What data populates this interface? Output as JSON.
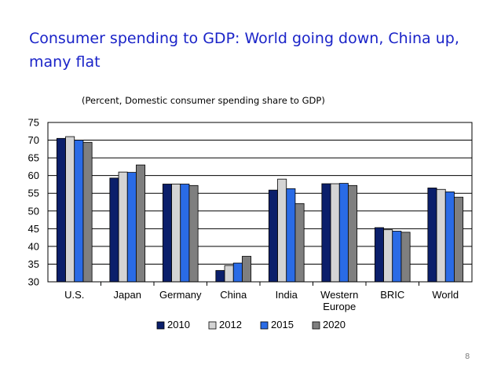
{
  "slide": {
    "title": "Consumer spending to GDP: World going down, China up, many flat",
    "subtitle": "(Percent, Domestic consumer spending share to GDP)",
    "page_number": "8"
  },
  "colors": {
    "title": "#1a23c8",
    "series": [
      "#0b1f6b",
      "#d4d4d4",
      "#2a6be6",
      "#7f7f7f"
    ],
    "plot_background": "#ffffff",
    "gridline": "#000000"
  },
  "chart_data": {
    "type": "bar",
    "title": "Consumer spending to GDP: World going down, China up, many flat",
    "subtitle": "(Percent, Domestic consumer spending share to GDP)",
    "categories": [
      "U.S.",
      "Japan",
      "Germany",
      "China",
      "India",
      "Western Europe",
      "BRIC",
      "World"
    ],
    "category_lines": [
      [
        "U.S."
      ],
      [
        "Japan"
      ],
      [
        "Germany"
      ],
      [
        "China"
      ],
      [
        "India"
      ],
      [
        "Western",
        "Europe"
      ],
      [
        "BRIC"
      ],
      [
        "World"
      ]
    ],
    "series": [
      {
        "name": "2010",
        "values": [
          70.5,
          59.3,
          57.6,
          33.2,
          55.9,
          57.7,
          45.3,
          56.5
        ]
      },
      {
        "name": "2012",
        "values": [
          71.0,
          61.0,
          57.6,
          34.6,
          59.0,
          57.7,
          44.7,
          56.1
        ]
      },
      {
        "name": "2015",
        "values": [
          70.0,
          60.9,
          57.6,
          35.3,
          56.3,
          57.8,
          44.3,
          55.4
        ]
      },
      {
        "name": "2020",
        "values": [
          69.4,
          63.0,
          57.2,
          37.2,
          52.1,
          57.2,
          44.0,
          53.9
        ]
      }
    ],
    "xlabel": "",
    "ylabel": "",
    "ylim": [
      30,
      75
    ],
    "yticks": [
      30,
      35,
      40,
      45,
      50,
      55,
      60,
      65,
      70,
      75
    ],
    "grid": true,
    "legend": "bottom"
  }
}
